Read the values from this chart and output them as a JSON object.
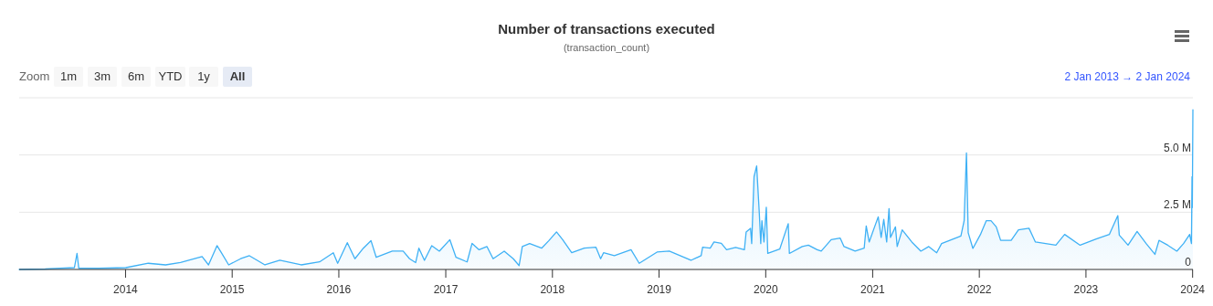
{
  "chart_data": {
    "type": "area",
    "title": "Number of transactions executed",
    "subtitle": "(transaction_count)",
    "annotations": [
      "Zoom",
      "1m",
      "3m",
      "6m",
      "YTD",
      "1y",
      "All",
      "2 Jan 2013 → 2 Jan 2024"
    ],
    "xlim": [
      "2013-01-02",
      "2024-01-02"
    ],
    "xticks": [
      {
        "value": "2014-01-01",
        "label": "2014"
      },
      {
        "value": "2015-01-01",
        "label": "2015"
      },
      {
        "value": "2016-01-01",
        "label": "2016"
      },
      {
        "value": "2017-01-01",
        "label": "2017"
      },
      {
        "value": "2018-01-01",
        "label": "2018"
      },
      {
        "value": "2019-01-01",
        "label": "2019"
      },
      {
        "value": "2020-01-01",
        "label": "2020"
      },
      {
        "value": "2021-01-01",
        "label": "2021"
      },
      {
        "value": "2022-01-01",
        "label": "2022"
      },
      {
        "value": "2023-01-01",
        "label": "2023"
      },
      {
        "value": "2024-01-01",
        "label": "2024"
      }
    ],
    "ylim": [
      0,
      7.5
    ],
    "yticks": [
      0,
      {
        "value": 2.5,
        "label": "2.5 M"
      },
      {
        "value": 5,
        "label": "5.0 M"
      },
      {
        "value": 7.5,
        "label": null
      }
    ],
    "grid": "y",
    "series": [
      {
        "color": "#3fb1f5",
        "x": [
          "2013-01-02",
          "2013-04-01",
          "2013-07-10",
          "2013-07-19",
          "2013-07-25",
          "2013-10-01",
          "2014-01-02",
          "2014-03-20",
          "2014-05-18",
          "2014-07-08",
          "2014-09-20",
          "2014-10-12",
          "2014-11-10",
          "2014-11-25",
          "2014-12-20",
          "2015-01-30",
          "2015-03-01",
          "2015-04-23",
          "2015-06-13",
          "2015-08-25",
          "2015-10-27",
          "2015-12-13",
          "2015-12-28",
          "2016-01-30",
          "2016-02-25",
          "2016-03-25",
          "2016-04-20",
          "2016-05-08",
          "2016-07-02",
          "2016-08-08",
          "2016-08-30",
          "2016-09-20",
          "2016-10-01",
          "2016-10-20",
          "2016-11-14",
          "2016-12-10",
          "2017-01-15",
          "2017-02-05",
          "2017-03-15",
          "2017-04-01",
          "2017-04-25",
          "2017-05-22",
          "2017-06-12",
          "2017-07-20",
          "2017-08-20",
          "2017-09-09",
          "2017-09-20",
          "2017-10-15",
          "2017-11-25",
          "2017-12-20",
          "2018-01-15",
          "2018-02-05",
          "2018-03-08",
          "2018-04-20",
          "2018-05-30",
          "2018-06-15",
          "2018-06-25",
          "2018-08-01",
          "2018-09-27",
          "2018-10-25",
          "2018-12-25",
          "2019-02-05",
          "2019-04-20",
          "2019-05-25",
          "2019-05-30",
          "2019-06-25",
          "2019-07-08",
          "2019-08-02",
          "2019-08-20",
          "2019-09-20",
          "2019-10-20",
          "2019-10-26",
          "2019-11-10",
          "2019-11-14",
          "2019-11-22",
          "2019-12-01",
          "2019-12-10",
          "2019-12-15",
          "2019-12-19",
          "2019-12-26",
          "2020-01-03",
          "2020-01-08",
          "2020-02-18",
          "2020-03-18",
          "2020-03-22",
          "2020-05-05",
          "2020-05-26",
          "2020-06-25",
          "2020-07-09",
          "2020-08-12",
          "2020-09-12",
          "2020-09-25",
          "2020-11-02",
          "2020-12-03",
          "2020-12-10",
          "2020-12-20",
          "2021-01-20",
          "2021-01-30",
          "2021-02-08",
          "2021-02-18",
          "2021-02-26",
          "2021-03-03",
          "2021-03-20",
          "2021-03-26",
          "2021-04-12",
          "2021-05-15",
          "2021-06-15",
          "2021-07-12",
          "2021-08-08",
          "2021-08-25",
          "2021-09-28",
          "2021-10-30",
          "2021-11-10",
          "2021-11-18",
          "2021-11-24",
          "2021-12-10",
          "2022-01-05",
          "2022-01-25",
          "2022-02-10",
          "2022-02-28",
          "2022-03-15",
          "2022-04-20",
          "2022-05-15",
          "2022-06-20",
          "2022-07-12",
          "2022-09-20",
          "2022-10-20",
          "2022-12-12",
          "2023-02-05",
          "2023-03-22",
          "2023-04-20",
          "2023-04-25",
          "2023-05-25",
          "2023-06-25",
          "2023-07-26",
          "2023-08-25",
          "2023-09-08",
          "2023-10-08",
          "2023-11-08",
          "2023-12-01",
          "2023-12-22",
          "2023-12-28",
          "2023-12-30",
          "2023-12-31",
          "2024-01-02"
        ],
        "values": [
          0,
          0.02,
          0.08,
          0.7,
          0.05,
          0.05,
          0.08,
          0.27,
          0.2,
          0.3,
          0.56,
          0.2,
          1.04,
          0.73,
          0.2,
          0.47,
          0.6,
          0.2,
          0.4,
          0.2,
          0.33,
          0.73,
          0.27,
          1.17,
          0.47,
          0.93,
          1.26,
          0.53,
          0.8,
          0.8,
          0.47,
          0.3,
          0.93,
          0.4,
          1.04,
          0.8,
          1.3,
          0.53,
          0.33,
          1.14,
          0.86,
          1.0,
          0.47,
          0.8,
          0.47,
          0.17,
          1.0,
          1.13,
          0.93,
          1.26,
          1.64,
          1.3,
          0.73,
          0.93,
          0.97,
          0.47,
          0.73,
          0.6,
          0.86,
          0.27,
          0.76,
          0.8,
          0.4,
          0.6,
          0.97,
          0.93,
          1.2,
          1.14,
          0.86,
          0.96,
          0.86,
          1.64,
          1.8,
          1.13,
          4.05,
          4.52,
          2.46,
          1.13,
          2.13,
          1.2,
          2.72,
          0.7,
          0.89,
          2.0,
          0.7,
          1.0,
          1.06,
          0.86,
          0.8,
          1.3,
          1.37,
          1.0,
          0.8,
          0.93,
          1.9,
          1.2,
          2.3,
          1.4,
          2.19,
          1.2,
          2.66,
          1.4,
          1.86,
          1.0,
          1.73,
          1.2,
          0.8,
          1.0,
          0.73,
          1.13,
          1.3,
          1.46,
          2.13,
          5.09,
          1.6,
          0.92,
          1.53,
          2.13,
          2.13,
          1.86,
          1.27,
          1.27,
          1.73,
          1.8,
          1.2,
          1.06,
          1.53,
          1.06,
          1.33,
          1.53,
          2.35,
          1.5,
          1.06,
          1.66,
          1.13,
          0.66,
          1.27,
          1.06,
          0.8,
          1.13,
          1.53,
          1.13,
          4.05,
          2.7,
          6.98
        ]
      }
    ]
  }
}
